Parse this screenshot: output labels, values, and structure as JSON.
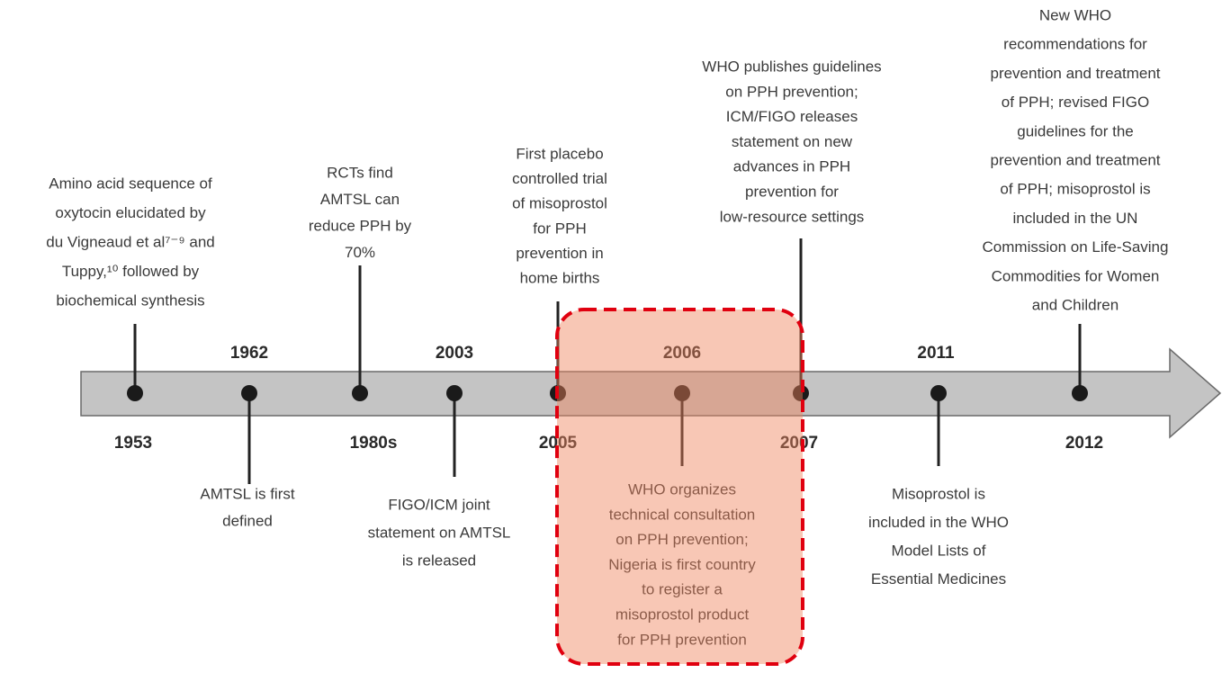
{
  "timeline": {
    "events": [
      {
        "year": "1953",
        "lines": [
          "Amino acid sequence of",
          "oxytocin elucidated by",
          "du Vigneaud et al⁷⁻⁹ and",
          "Tuppy,¹⁰ followed by",
          "biochemical synthesis"
        ]
      },
      {
        "year": "1962",
        "lines": [
          "AMTSL is first",
          "defined"
        ]
      },
      {
        "year": "1980s",
        "lines": [
          "RCTs find",
          "AMTSL can",
          "reduce PPH by",
          "70%"
        ]
      },
      {
        "year": "2003",
        "lines": [
          "FIGO/ICM joint",
          "statement on AMTSL",
          "is released"
        ]
      },
      {
        "year": "2005",
        "lines": [
          "First placebo",
          "controlled trial",
          "of misoprostol",
          "for PPH",
          "prevention in",
          "home births"
        ]
      },
      {
        "year": "2006",
        "lines": [
          "WHO organizes",
          "technical consultation",
          "on PPH prevention;",
          "Nigeria is first country",
          "to register a",
          "misoprostol product",
          "for PPH prevention"
        ]
      },
      {
        "year": "2007",
        "lines": [
          "WHO publishes guidelines",
          "on PPH prevention;",
          "ICM/FIGO releases",
          "statement on new",
          "advances in PPH",
          "prevention for",
          "low-resource settings"
        ]
      },
      {
        "year": "2011",
        "lines": [
          "Misoprostol is",
          "included in the WHO",
          "Model Lists of",
          "Essential Medicines"
        ]
      },
      {
        "year": "2012",
        "lines": [
          "New WHO",
          "recommendations for",
          "prevention and treatment",
          "of PPH; revised FIGO",
          "guidelines for the",
          "prevention and treatment",
          "of PPH; misoprostol is",
          "included in the UN",
          "Commission on Life-Saving",
          "Commodities for Women",
          "and Children"
        ]
      }
    ]
  }
}
